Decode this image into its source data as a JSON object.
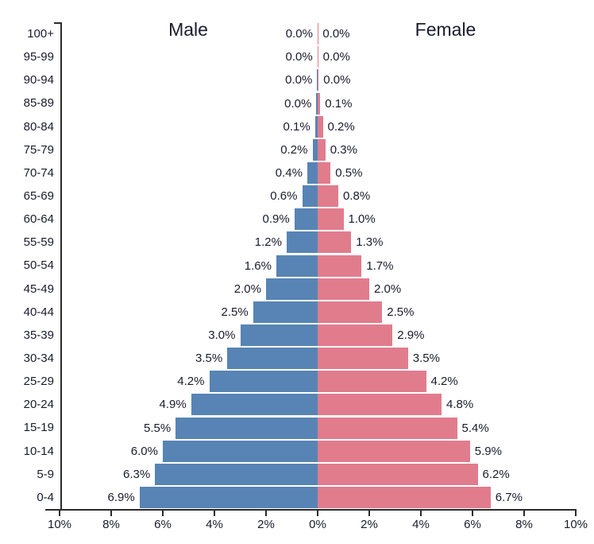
{
  "chart_data": {
    "type": "bar",
    "variant": "population-pyramid",
    "title_left": "Male",
    "title_right": "Female",
    "categories": [
      "100+",
      "95-99",
      "90-94",
      "85-89",
      "80-84",
      "75-79",
      "70-74",
      "65-69",
      "60-64",
      "55-59",
      "50-54",
      "45-49",
      "40-44",
      "35-39",
      "30-34",
      "25-29",
      "20-24",
      "15-19",
      "10-14",
      "5-9",
      "0-4"
    ],
    "series": [
      {
        "name": "Male",
        "side": "left",
        "color": "#5784B5",
        "labels": [
          "0.0%",
          "0.0%",
          "0.0%",
          "0.0%",
          "0.1%",
          "0.2%",
          "0.4%",
          "0.6%",
          "0.9%",
          "1.2%",
          "1.6%",
          "2.0%",
          "2.5%",
          "3.0%",
          "3.5%",
          "4.2%",
          "4.9%",
          "5.5%",
          "6.0%",
          "6.3%",
          "6.9%"
        ],
        "values": [
          0.0,
          0.0,
          0.0,
          0.0,
          0.1,
          0.2,
          0.4,
          0.6,
          0.9,
          1.2,
          1.6,
          2.0,
          2.5,
          3.0,
          3.5,
          4.2,
          4.9,
          5.5,
          6.0,
          6.3,
          6.9
        ],
        "render_values": [
          0.0,
          0.01,
          0.02,
          0.05,
          0.1,
          0.2,
          0.4,
          0.6,
          0.9,
          1.2,
          1.6,
          2.0,
          2.5,
          3.0,
          3.5,
          4.2,
          4.9,
          5.5,
          6.0,
          6.3,
          6.9
        ]
      },
      {
        "name": "Female",
        "side": "right",
        "color": "#E17C8D",
        "labels": [
          "0.0%",
          "0.0%",
          "0.0%",
          "0.1%",
          "0.2%",
          "0.3%",
          "0.5%",
          "0.8%",
          "1.0%",
          "1.3%",
          "1.7%",
          "2.0%",
          "2.5%",
          "2.9%",
          "3.5%",
          "4.2%",
          "4.8%",
          "5.4%",
          "5.9%",
          "6.2%",
          "6.7%"
        ],
        "values": [
          0.0,
          0.0,
          0.0,
          0.1,
          0.2,
          0.3,
          0.5,
          0.8,
          1.0,
          1.3,
          1.7,
          2.0,
          2.5,
          2.9,
          3.5,
          4.2,
          4.8,
          5.4,
          5.9,
          6.2,
          6.7
        ],
        "render_values": [
          0.01,
          0.02,
          0.04,
          0.1,
          0.2,
          0.3,
          0.5,
          0.8,
          1.0,
          1.3,
          1.7,
          2.0,
          2.5,
          2.9,
          3.5,
          4.2,
          4.8,
          5.4,
          5.9,
          6.2,
          6.7
        ]
      }
    ],
    "x_axis": {
      "unit": "%",
      "tick_values": [
        -10,
        -8,
        -6,
        -4,
        -2,
        0,
        2,
        4,
        6,
        8,
        10
      ],
      "tick_labels": [
        "10%",
        "8%",
        "6%",
        "4%",
        "2%",
        "0%",
        "2%",
        "4%",
        "6%",
        "8%",
        "10%"
      ],
      "max_pct": 10
    },
    "colors": {
      "male": "#5784B5",
      "female": "#E17C8D",
      "text": "#1a1b2e",
      "axis": "#2b2b2b"
    },
    "legend": "none",
    "grid": false
  }
}
